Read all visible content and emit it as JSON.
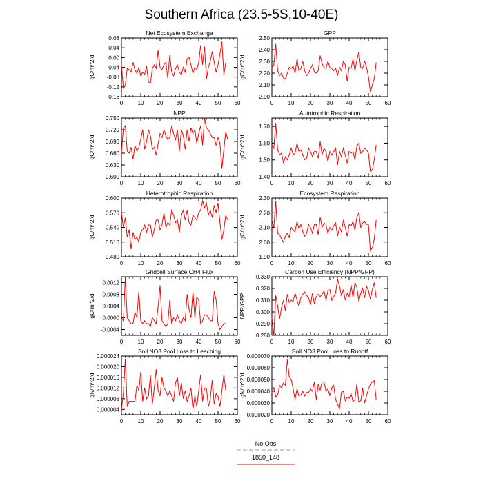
{
  "figure": {
    "title": "Southern Africa (23.5-5S,10-40E)"
  },
  "legend": {
    "entries": [
      {
        "label": "No Obs",
        "color": "#8899ff",
        "dashed": true
      },
      {
        "label": "1850_148",
        "color": "#ff0000",
        "dashed": false
      }
    ]
  },
  "chart_data": [
    {
      "type": "line",
      "title": "Net Ecosystem Exchange",
      "ylabel": "gC/m^2/d",
      "xlim": [
        0,
        60
      ],
      "ylim": [
        -0.16,
        0.08
      ],
      "xticks": [
        0,
        10,
        20,
        30,
        40,
        50,
        60
      ],
      "yticks": [
        -0.16,
        -0.12,
        -0.08,
        -0.04,
        0.0,
        0.04,
        0.08
      ],
      "ytick_labels": [
        "-0.16",
        "-0.12",
        "-0.08",
        "-0.04",
        "0.00",
        "0.04",
        "0.08"
      ],
      "series": [
        {
          "color": "#ff0000",
          "values": [
            -0.03,
            -0.125,
            -0.115,
            -0.045,
            -0.05,
            -0.06,
            -0.02,
            -0.05,
            -0.065,
            -0.04,
            -0.075,
            -0.06,
            -0.07,
            -0.035,
            -0.1,
            -0.105,
            -0.045,
            -0.03,
            -0.045,
            0.03,
            -0.04,
            -0.05,
            -0.03,
            -0.02,
            -0.085,
            0.01,
            -0.06,
            -0.075,
            -0.045,
            -0.03,
            -0.06,
            -0.07,
            -0.04,
            -0.06,
            -0.005,
            0.0,
            -0.03,
            -0.065,
            -0.04,
            -0.05,
            -0.02,
            0.05,
            -0.03,
            0.045,
            -0.09,
            -0.04,
            -0.015,
            0.025,
            -0.02,
            -0.06,
            -0.03,
            0.015,
            0.065,
            -0.07,
            -0.02
          ]
        }
      ]
    },
    {
      "type": "line",
      "title": "GPP",
      "ylabel": "gC/m^2/d",
      "xlim": [
        0,
        60
      ],
      "ylim": [
        2.0,
        2.5
      ],
      "xticks": [
        0,
        10,
        20,
        30,
        40,
        50,
        60
      ],
      "yticks": [
        2.0,
        2.1,
        2.2,
        2.3,
        2.4,
        2.5
      ],
      "ytick_labels": [
        "2.00",
        "2.10",
        "2.20",
        "2.30",
        "2.40",
        "2.50"
      ],
      "series": [
        {
          "color": "#ff0000",
          "values": [
            2.25,
            2.27,
            2.45,
            2.22,
            2.18,
            2.2,
            2.16,
            2.15,
            2.2,
            2.25,
            2.24,
            2.26,
            2.2,
            2.32,
            2.22,
            2.24,
            2.3,
            2.22,
            2.18,
            2.2,
            2.24,
            2.27,
            2.21,
            2.2,
            2.22,
            2.35,
            2.28,
            2.25,
            2.24,
            2.3,
            2.25,
            2.24,
            2.22,
            2.24,
            2.18,
            2.25,
            2.22,
            2.3,
            2.27,
            2.13,
            2.25,
            2.24,
            2.32,
            2.22,
            2.31,
            2.38,
            2.25,
            2.24,
            2.3,
            2.25,
            2.17,
            2.04,
            2.1,
            2.15,
            2.29
          ]
        }
      ]
    },
    {
      "type": "line",
      "title": "NPP",
      "ylabel": "gC/m^2/d",
      "xlim": [
        0,
        60
      ],
      "ylim": [
        0.6,
        0.75
      ],
      "xticks": [
        0,
        10,
        20,
        30,
        40,
        50,
        60
      ],
      "yticks": [
        0.6,
        0.63,
        0.66,
        0.69,
        0.72,
        0.75
      ],
      "ytick_labels": [
        "0.600",
        "0.630",
        "0.660",
        "0.690",
        "0.720",
        "0.750"
      ],
      "series": [
        {
          "color": "#ff0000",
          "values": [
            0.66,
            0.725,
            0.73,
            0.665,
            0.66,
            0.675,
            0.645,
            0.68,
            0.665,
            0.675,
            0.695,
            0.72,
            0.67,
            0.69,
            0.72,
            0.705,
            0.67,
            0.675,
            0.655,
            0.685,
            0.71,
            0.7,
            0.72,
            0.705,
            0.695,
            0.7,
            0.73,
            0.71,
            0.695,
            0.72,
            0.665,
            0.72,
            0.705,
            0.67,
            0.72,
            0.69,
            0.725,
            0.71,
            0.72,
            0.685,
            0.71,
            0.73,
            0.68,
            0.75,
            0.725,
            0.72,
            0.71,
            0.7,
            0.7,
            0.68,
            0.7,
            0.685,
            0.62,
            0.67,
            0.715,
            0.695
          ]
        }
      ]
    },
    {
      "type": "line",
      "title": "Autotrophic Respiration",
      "ylabel": "gC/m^2/d",
      "xlim": [
        0,
        60
      ],
      "ylim": [
        1.4,
        1.75
      ],
      "xticks": [
        0,
        10,
        20,
        30,
        40,
        50,
        60
      ],
      "yticks": [
        1.4,
        1.5,
        1.6,
        1.7
      ],
      "ytick_labels": [
        "1.40",
        "1.50",
        "1.60",
        "1.70"
      ],
      "series": [
        {
          "color": "#ff0000",
          "values": [
            1.59,
            1.57,
            1.72,
            1.56,
            1.53,
            1.54,
            1.48,
            1.52,
            1.5,
            1.53,
            1.57,
            1.53,
            1.54,
            1.6,
            1.55,
            1.56,
            1.53,
            1.5,
            1.51,
            1.57,
            1.55,
            1.52,
            1.55,
            1.55,
            1.51,
            1.61,
            1.53,
            1.57,
            1.55,
            1.49,
            1.55,
            1.53,
            1.55,
            1.57,
            1.47,
            1.55,
            1.52,
            1.57,
            1.53,
            1.48,
            1.55,
            1.54,
            1.55,
            1.5,
            1.58,
            1.6,
            1.54,
            1.55,
            1.57,
            1.56,
            1.54,
            1.43,
            1.44,
            1.5,
            1.59
          ]
        }
      ]
    },
    {
      "type": "line",
      "title": "Heterotrophic Respiration",
      "ylabel": "gC/m^2/d",
      "xlim": [
        0,
        60
      ],
      "ylim": [
        0.48,
        0.6
      ],
      "xticks": [
        0,
        10,
        20,
        30,
        40,
        50,
        60
      ],
      "yticks": [
        0.48,
        0.51,
        0.54,
        0.57,
        0.6
      ],
      "ytick_labels": [
        "0.480",
        "0.510",
        "0.540",
        "0.570",
        "0.600"
      ],
      "series": [
        {
          "color": "#ff0000",
          "values": [
            0.57,
            0.54,
            0.56,
            0.52,
            0.535,
            0.495,
            0.53,
            0.515,
            0.52,
            0.51,
            0.53,
            0.535,
            0.545,
            0.53,
            0.545,
            0.545,
            0.52,
            0.535,
            0.555,
            0.555,
            0.535,
            0.545,
            0.57,
            0.54,
            0.55,
            0.545,
            0.575,
            0.565,
            0.55,
            0.555,
            0.53,
            0.565,
            0.575,
            0.555,
            0.575,
            0.55,
            0.545,
            0.565,
            0.56,
            0.555,
            0.57,
            0.575,
            0.595,
            0.58,
            0.59,
            0.565,
            0.575,
            0.56,
            0.585,
            0.57,
            0.59,
            0.55,
            0.515,
            0.535,
            0.565,
            0.555
          ]
        }
      ]
    },
    {
      "type": "line",
      "title": "Ecosystem Respiration",
      "ylabel": "gC/m^2/d",
      "xlim": [
        0,
        60
      ],
      "ylim": [
        1.9,
        2.3
      ],
      "xticks": [
        0,
        10,
        20,
        30,
        40,
        50,
        60
      ],
      "yticks": [
        1.9,
        2.0,
        2.1,
        2.2,
        2.3
      ],
      "ytick_labels": [
        "1.90",
        "2.00",
        "2.10",
        "2.20",
        "2.30"
      ],
      "series": [
        {
          "color": "#ff0000",
          "values": [
            2.15,
            2.1,
            2.28,
            2.06,
            2.05,
            2.02,
            2.0,
            2.04,
            2.06,
            2.03,
            2.1,
            2.08,
            2.07,
            2.14,
            2.09,
            2.12,
            2.07,
            2.04,
            2.06,
            2.12,
            2.1,
            2.06,
            2.12,
            2.12,
            2.05,
            2.17,
            2.1,
            2.13,
            2.12,
            2.06,
            2.1,
            2.08,
            2.11,
            2.13,
            2.04,
            2.1,
            2.07,
            2.15,
            2.1,
            2.04,
            2.12,
            2.11,
            2.14,
            2.08,
            2.17,
            2.2,
            2.1,
            2.13,
            2.14,
            2.12,
            2.12,
            1.94,
            1.96,
            2.02,
            2.15
          ]
        }
      ]
    },
    {
      "type": "line",
      "title": "Gridcell Surface CH4 Flux",
      "ylabel": "gC/m^2/d",
      "xlim": [
        0,
        60
      ],
      "ylim": [
        -0.0006,
        0.0014
      ],
      "xticks": [
        0,
        10,
        20,
        30,
        40,
        50,
        60
      ],
      "yticks": [
        -0.0004,
        0.0,
        0.0004,
        0.0008,
        0.0012
      ],
      "ytick_labels": [
        "-0.0004",
        "0.0000",
        "0.0004",
        "0.0008",
        "0.0012"
      ],
      "series": [
        {
          "color": "#ff0000",
          "values": [
            0.0,
            -0.0001,
            0.00135,
            0.0,
            -0.0001,
            -0.0002,
            -0.0002,
            0.0002,
            0.0,
            0.0009,
            -0.0001,
            -0.0002,
            -0.0001,
            -0.0002,
            -0.0002,
            -0.0003,
            0.0,
            -0.0001,
            -0.0002,
            0.0004,
            0.0011,
            -0.0001,
            -0.0002,
            -0.0003,
            -0.0002,
            0.0006,
            -0.0002,
            0.0,
            -0.0001,
            0.0001,
            -0.0001,
            -0.0002,
            0.0,
            -0.0001,
            0.0008,
            0.0003,
            0.0,
            0.0009,
            0.0,
            0.0007,
            0.0006,
            -0.0002,
            -0.0001,
            0.0001,
            0.0001,
            0.0,
            -0.0001,
            -0.0001,
            0.0009,
            0.0006,
            -0.0002,
            -0.0004,
            -0.0003,
            -0.0002,
            -0.0002
          ]
        }
      ]
    },
    {
      "type": "line",
      "title": "Carbon Use Efficiency (NPP/GPP)",
      "ylabel": "NPP/GPP",
      "xlim": [
        0,
        60
      ],
      "ylim": [
        0.28,
        0.33
      ],
      "xticks": [
        0,
        10,
        20,
        30,
        40,
        50,
        60
      ],
      "yticks": [
        0.28,
        0.29,
        0.3,
        0.31,
        0.32,
        0.33
      ],
      "ytick_labels": [
        "0.280",
        "0.290",
        "0.300",
        "0.310",
        "0.320",
        "0.330"
      ],
      "series": [
        {
          "color": "#ff0000",
          "values": [
            0.295,
            0.28,
            0.314,
            0.305,
            0.294,
            0.304,
            0.31,
            0.301,
            0.315,
            0.308,
            0.31,
            0.309,
            0.316,
            0.31,
            0.305,
            0.312,
            0.315,
            0.317,
            0.314,
            0.312,
            0.306,
            0.316,
            0.307,
            0.313,
            0.315,
            0.313,
            0.315,
            0.318,
            0.31,
            0.318,
            0.319,
            0.31,
            0.313,
            0.316,
            0.328,
            0.322,
            0.314,
            0.319,
            0.31,
            0.316,
            0.313,
            0.323,
            0.312,
            0.325,
            0.321,
            0.309,
            0.316,
            0.32,
            0.312,
            0.322,
            0.318,
            0.311,
            0.319,
            0.325,
            0.312
          ]
        }
      ]
    },
    {
      "type": "line",
      "title": "Soil NO3 Pool Loss to Leaching",
      "ylabel": "gN/m^2/d",
      "xlim": [
        0,
        60
      ],
      "ylim": [
        2e-06,
        2.4e-05
      ],
      "xticks": [
        0,
        10,
        20,
        30,
        40,
        50,
        60
      ],
      "yticks": [
        4e-06,
        8e-06,
        1.2e-05,
        1.6e-05,
        2e-05,
        2.4e-05
      ],
      "ytick_labels": [
        "0.000004",
        "0.000008",
        "0.000012",
        "0.000016",
        "0.000020",
        "0.000024"
      ],
      "series": [
        {
          "color": "#ff0000",
          "values": [
            4e-06,
            1e-05,
            2.3e-05,
            5e-06,
            7e-06,
            7e-06,
            7e-06,
            7e-06,
            1.3e-05,
            1.1e-05,
            1.8e-05,
            7e-06,
            1.2e-05,
            8e-06,
            9e-06,
            1.7e-05,
            6e-06,
            1.2e-05,
            1.9e-05,
            1.1e-05,
            9e-06,
            1.6e-05,
            1.2e-05,
            1.1e-05,
            9e-06,
            1.1e-05,
            9e-06,
            7e-06,
            1.4e-05,
            1.6e-05,
            9e-06,
            1.4e-05,
            8e-06,
            1.1e-05,
            7e-06,
            9e-06,
            1.2e-05,
            4e-06,
            9e-06,
            5e-06,
            1.1e-05,
            1.7e-05,
            7e-06,
            1.2e-05,
            1.2e-05,
            5e-06,
            8e-06,
            1.5e-05,
            6e-06,
            1e-05,
            9e-06,
            5e-06,
            1.1e-05,
            1.7e-05,
            1.1e-05
          ]
        }
      ]
    },
    {
      "type": "line",
      "title": "Soil NO3 Pool Loss to Runoff",
      "ylabel": "gN/m^2/d",
      "xlim": [
        0,
        60
      ],
      "ylim": [
        2e-05,
        7e-05
      ],
      "xticks": [
        0,
        10,
        20,
        30,
        40,
        50,
        60
      ],
      "yticks": [
        2e-05,
        3e-05,
        4e-05,
        5e-05,
        6e-05,
        7e-05
      ],
      "ytick_labels": [
        "0.000020",
        "0.000030",
        "0.000040",
        "0.000050",
        "0.000060",
        "0.000070"
      ],
      "series": [
        {
          "color": "#ff0000",
          "values": [
            3.9e-05,
            4.3e-05,
            3.5e-05,
            3.7e-05,
            4.5e-05,
            4.3e-05,
            4.7e-05,
            4.5e-05,
            6.7e-05,
            5.2e-05,
            5e-05,
            4.2e-05,
            3.3e-05,
            4.2e-05,
            3.6e-05,
            3.7e-05,
            4e-05,
            3.6e-05,
            3.9e-05,
            3.9e-05,
            4.2e-05,
            4e-05,
            4.8e-05,
            3.3e-05,
            4.6e-05,
            4.1e-05,
            4.8e-05,
            4.8e-05,
            4e-05,
            4.2e-05,
            3.6e-05,
            4.3e-05,
            4.5e-05,
            3.3e-05,
            2.9e-05,
            2.5e-05,
            3.9e-05,
            4e-05,
            3.2e-05,
            3.5e-05,
            3.4e-05,
            3.8e-05,
            3.1e-05,
            3.3e-05,
            4.6e-05,
            3.1e-05,
            3.2e-05,
            4.3e-05,
            3e-05,
            3.6e-05,
            4.2e-05,
            4.6e-05,
            4.8e-05,
            4.9e-05,
            3.3e-05
          ]
        }
      ]
    }
  ]
}
